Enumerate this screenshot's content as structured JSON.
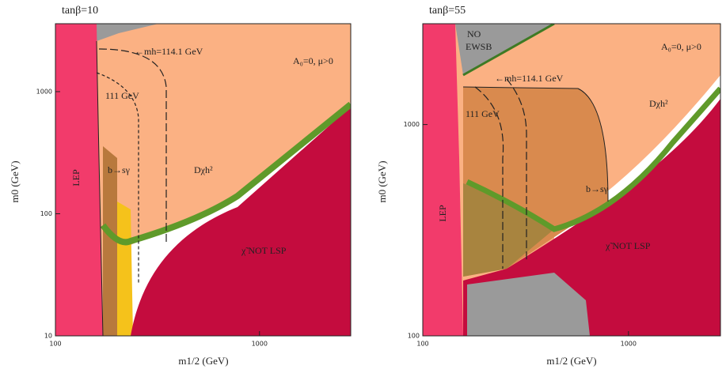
{
  "chart_data": [
    {
      "type": "region",
      "title": "tanβ=10",
      "xlabel": "m1/2 (GeV)",
      "ylabel": "m0 (GeV)",
      "xscale": "log",
      "yscale": "log",
      "xlim": [
        100,
        2800
      ],
      "ylim": [
        10,
        3600
      ],
      "xticks": [
        100,
        1000
      ],
      "yticks": [
        10,
        100,
        1000
      ],
      "annotations": [
        "←mh=114.1 GeV",
        "111 GeV",
        "b→sγ",
        "Dχh²",
        "χ̃ NOT LSP",
        "A₀=0, μ>0",
        "LEP"
      ]
    },
    {
      "type": "region",
      "title": "tanβ=55",
      "xlabel": "m1/2 (GeV)",
      "ylabel": "m0 (GeV)",
      "xscale": "log",
      "yscale": "log",
      "xlim": [
        100,
        2800
      ],
      "ylim": [
        100,
        3000
      ],
      "xticks": [
        100,
        1000
      ],
      "yticks": [
        100,
        1000
      ],
      "annotations": [
        "←mh=114.1 GeV",
        "111 GeV",
        "b→sγ",
        "Dχh²",
        "χ̃ NOT LSP",
        "A₀=0, μ>0",
        "LEP",
        "NO",
        "EWSB"
      ]
    }
  ]
}
